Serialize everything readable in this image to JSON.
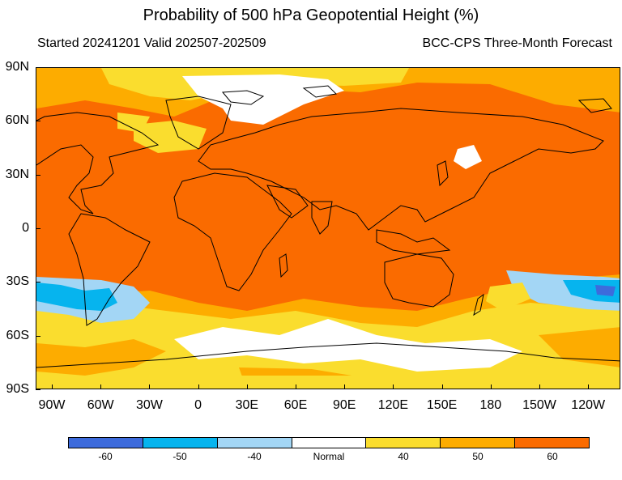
{
  "title": "Probability of 500 hPa Geopotential Height (%)",
  "subtitle_left": "Started 20241201  Valid 202507-202509",
  "subtitle_right": "BCC-CPS Three-Month Forecast",
  "lat_labels": [
    "90N",
    "60N",
    "30N",
    "0",
    "30S",
    "60S",
    "90S"
  ],
  "lon_labels": [
    "90W",
    "60W",
    "30W",
    "0",
    "30E",
    "60E",
    "90E",
    "120E",
    "150E",
    "180",
    "150W",
    "120W"
  ],
  "colorbar": {
    "colors": [
      "#3d6bdc",
      "#06b4ee",
      "#a3d6f5",
      "#ffffff",
      "#fadd2e",
      "#fdac00",
      "#fa6b00"
    ],
    "labels": [
      "-60",
      "-50",
      "-40",
      "Normal",
      "40",
      "50",
      "60"
    ]
  },
  "map_colors": {
    "background": "#fa6b00",
    "prob_50": "#fdac00",
    "prob_40": "#fadd2e",
    "normal": "#ffffff",
    "neg_40": "#a3d6f5",
    "neg_50": "#06b4ee",
    "neg_60": "#3d6bdc"
  }
}
